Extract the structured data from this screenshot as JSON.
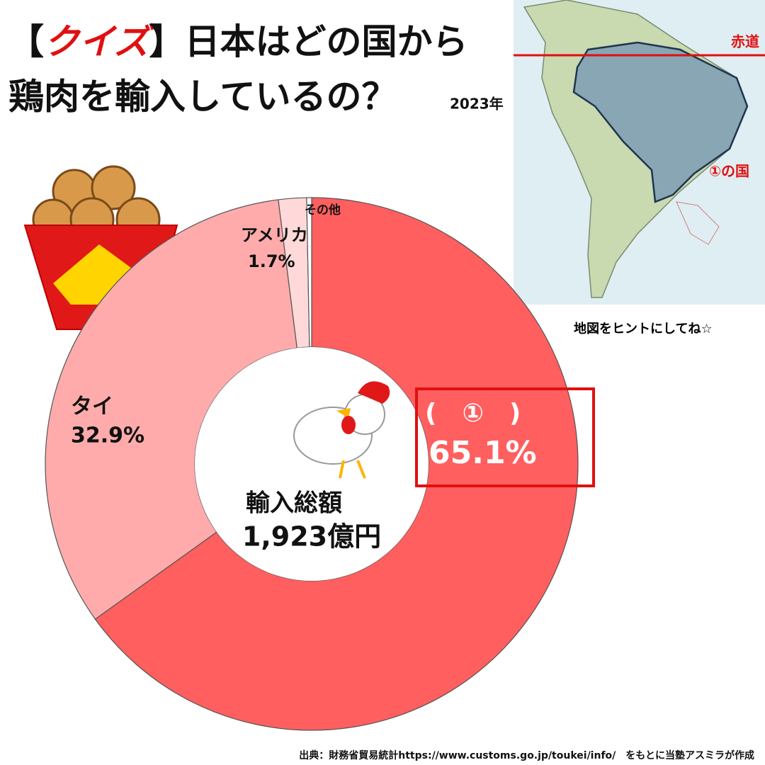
{
  "chart_data": {
    "type": "pie",
    "title": {
      "open": "【",
      "highlight": "クイズ",
      "rest": "】日本はどの国から",
      "line2": "鶏肉を輸入しているの？"
    },
    "year": "2023年",
    "categories": [
      "(　①　)",
      "タイ",
      "アメリカ",
      "その他"
    ],
    "values": [
      65.1,
      32.9,
      1.7,
      0.3
    ],
    "value_labels": [
      "65.1%",
      "32.9%",
      "1.7%",
      null
    ],
    "colors": [
      "#ff5f5f",
      "#ffabab",
      "#ffd9d9",
      "#ffffff"
    ],
    "center_label": [
      "輸入総額",
      "1,923億円"
    ],
    "map": {
      "equator": "赤道",
      "country": "①の国",
      "hint": "地図をヒントにしてね☆"
    },
    "source": "出典：財務省貿易統計https://www.customs.go.jp/toukei/info/　をもとに当塾アスミラが作成"
  }
}
